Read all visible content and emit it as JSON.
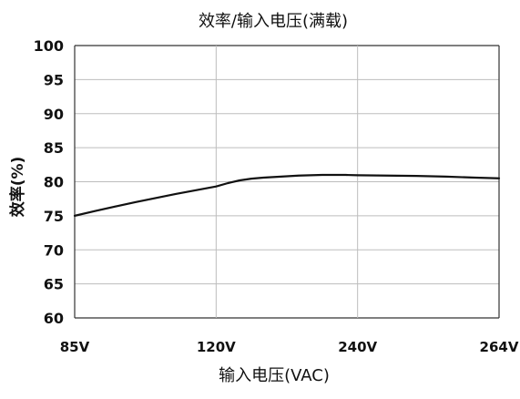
{
  "chart_data": {
    "type": "line",
    "title": "效率/输入电压(满载)",
    "xlabel": "输入电压(VAC)",
    "ylabel": "效率(%)",
    "categories": [
      "85V",
      "120V",
      "240V",
      "264V"
    ],
    "ylim": [
      60,
      100
    ],
    "yticks": [
      100,
      95,
      90,
      85,
      80,
      75,
      70,
      65,
      60
    ],
    "grid": true,
    "legend": "none",
    "series": [
      {
        "x": [
          85,
          90,
          100,
          110,
          120,
          130,
          140,
          150,
          160,
          170,
          180,
          190,
          200,
          210,
          220,
          230,
          240,
          245,
          250,
          255,
          260,
          264
        ],
        "y": [
          75.0,
          75.7,
          77.0,
          78.2,
          79.3,
          79.8,
          80.2,
          80.45,
          80.6,
          80.7,
          80.8,
          80.9,
          80.95,
          81.0,
          81.0,
          81.0,
          80.95,
          80.9,
          80.85,
          80.75,
          80.6,
          80.5
        ],
        "color": "#111111"
      }
    ]
  }
}
